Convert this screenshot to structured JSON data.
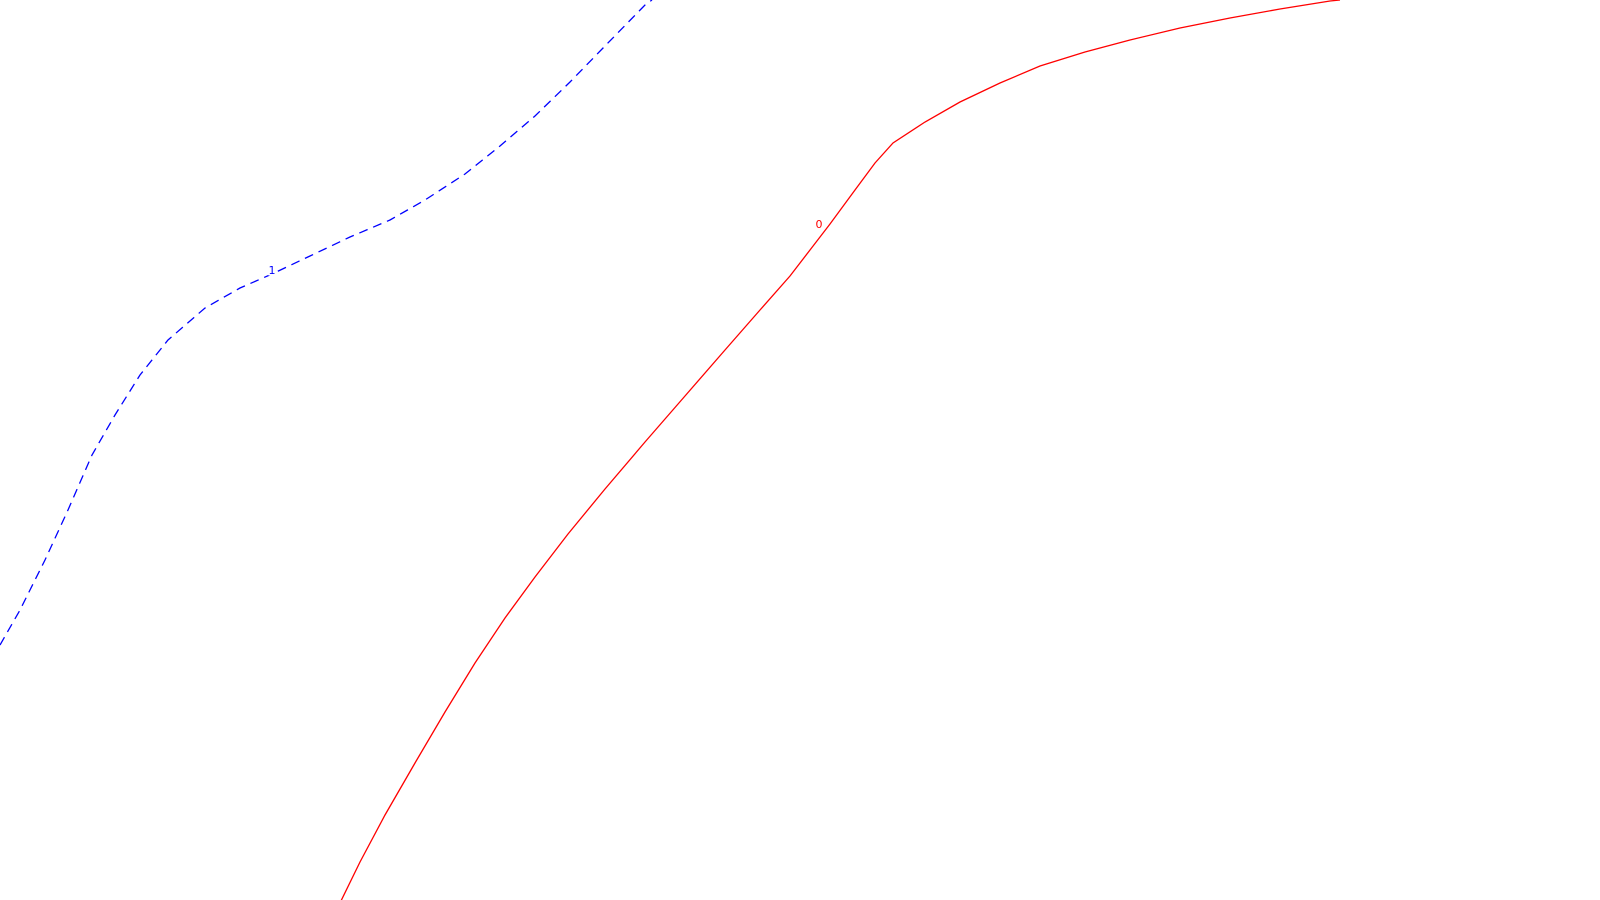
{
  "contours": [
    {
      "level_label": "1",
      "color": "#0000ff",
      "style": "dashed"
    },
    {
      "level_label": "0",
      "color": "#ff0000",
      "style": "solid"
    }
  ]
}
